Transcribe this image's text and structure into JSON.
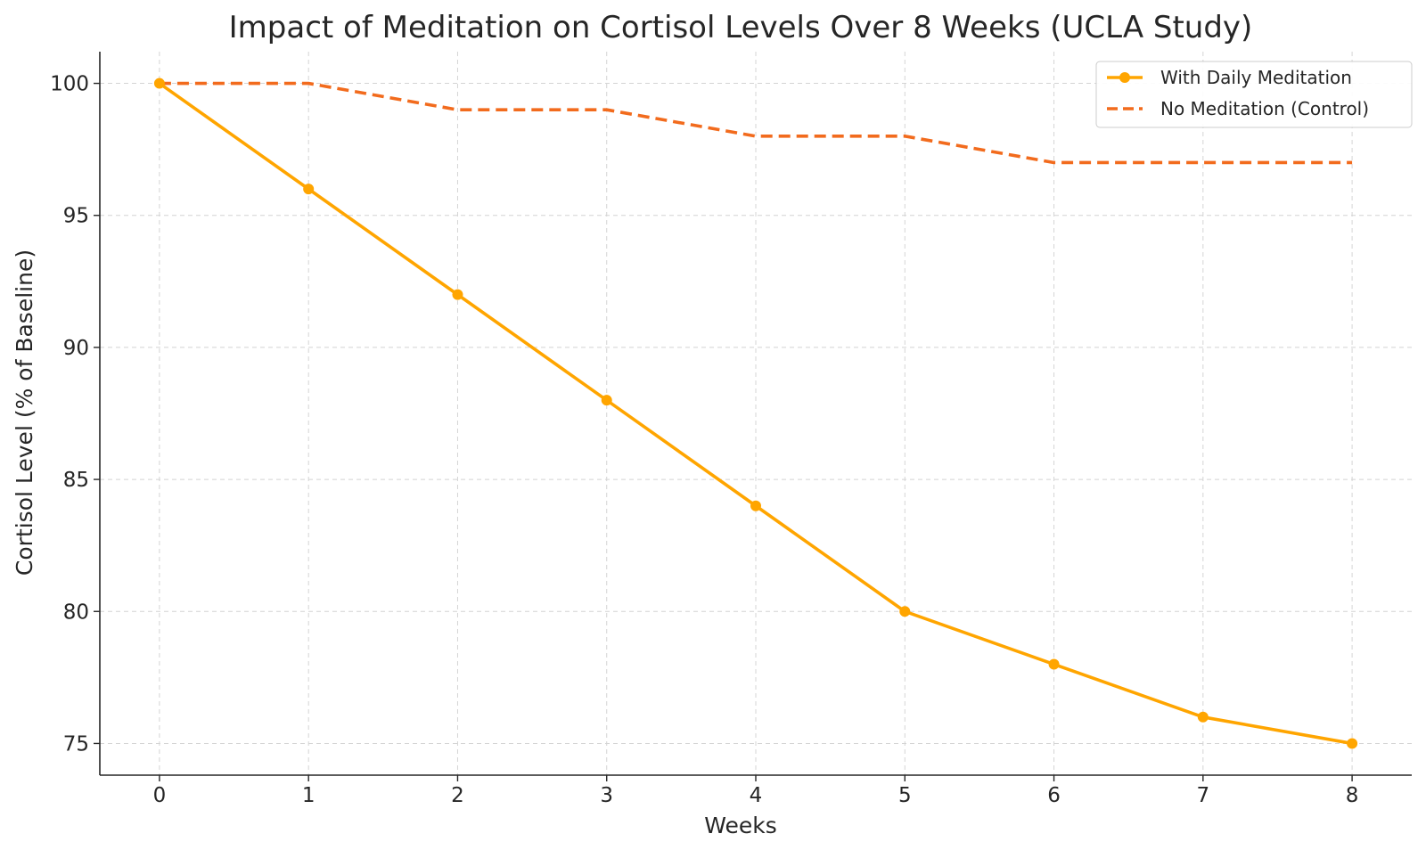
{
  "chart_data": {
    "type": "line",
    "title": "Impact of Meditation on Cortisol Levels Over 8 Weeks (UCLA Study)",
    "xlabel": "Weeks",
    "ylabel": "Cortisol Level (% of Baseline)",
    "x": [
      0,
      1,
      2,
      3,
      4,
      5,
      6,
      7,
      8
    ],
    "xlim": [
      -0.4,
      8.4
    ],
    "ylim": [
      73.8,
      101.2
    ],
    "xticks": [
      0,
      1,
      2,
      3,
      4,
      5,
      6,
      7,
      8
    ],
    "yticks": [
      75,
      80,
      85,
      90,
      95,
      100
    ],
    "x_tick_labels": [
      "0",
      "1",
      "2",
      "3",
      "4",
      "5",
      "6",
      "7",
      "8"
    ],
    "y_tick_labels": [
      "75",
      "80",
      "85",
      "90",
      "95",
      "100"
    ],
    "grid": true,
    "legend_position": "top-right",
    "series": [
      {
        "name": "With Daily Meditation",
        "values": [
          100,
          96,
          92,
          88,
          84,
          80,
          78,
          76,
          75
        ],
        "color": "#FFA500",
        "line_style": "solid",
        "marker": "circle"
      },
      {
        "name": "No Meditation (Control)",
        "values": [
          100,
          100,
          99,
          99,
          98,
          98,
          97,
          97,
          97
        ],
        "color": "#F26B1D",
        "line_style": "dashed",
        "marker": "none"
      }
    ]
  }
}
